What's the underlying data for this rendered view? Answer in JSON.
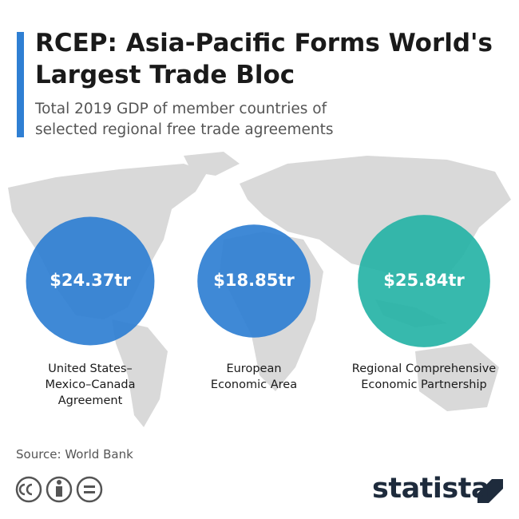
{
  "title": "RCEP: Asia-Pacific Forms World's Largest Trade Bloc",
  "subtitle": "Total 2019 GDP of member countries of selected regional free trade agreements",
  "chart_data": {
    "type": "bubble",
    "categories": [
      "United States–Mexico–Canada Agreement",
      "European Economic Area",
      "Regional Comprehensive Economic Partnership"
    ],
    "values": [
      24.37,
      18.85,
      25.84
    ],
    "value_labels": [
      "$24.37tr",
      "$18.85tr",
      "$25.84tr"
    ],
    "colors": [
      "#2f7fd3",
      "#2f7fd3",
      "#26b3a6"
    ]
  },
  "source": "Source: World Bank",
  "brand": "statista"
}
